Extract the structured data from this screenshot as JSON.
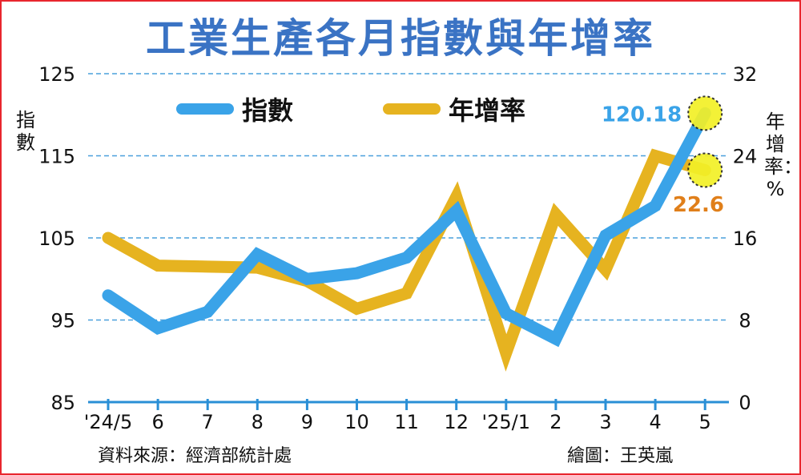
{
  "title": "工業生產各月指數與年增率",
  "footer": {
    "source": "資料來源：經濟部統計處",
    "credit": "繪圖：王英嵐"
  },
  "colors": {
    "index": "#3aa3e8",
    "growth": "#e6b320",
    "frame": "#e8262e",
    "title": "#3a73c4",
    "highlight": "#f3f027",
    "growth_label": "#e07f1a"
  },
  "chart_data": {
    "type": "line",
    "categories": [
      "'24/5",
      "6",
      "7",
      "8",
      "9",
      "10",
      "11",
      "12",
      "'25/1",
      "2",
      "3",
      "4",
      "5"
    ],
    "left_axis": {
      "label": "指數",
      "ticks": [
        85,
        95,
        105,
        115,
        125
      ],
      "ylim": [
        85,
        125
      ]
    },
    "right_axis": {
      "label": "年增率：%",
      "ticks": [
        0,
        8,
        16,
        24,
        32
      ],
      "ylim": [
        0,
        32
      ]
    },
    "grid": "horizontal-dashed",
    "legend_position": "top",
    "series": [
      {
        "name": "指數",
        "axis": "left",
        "values": [
          98.0,
          94.0,
          96.0,
          103.0,
          100.0,
          100.7,
          102.6,
          108.3,
          95.8,
          92.7,
          105.3,
          108.9,
          120.18
        ]
      },
      {
        "name": "年增率",
        "axis": "right",
        "values": [
          16.0,
          13.3,
          13.2,
          13.1,
          11.8,
          9.1,
          10.6,
          20.0,
          4.8,
          18.3,
          12.9,
          24.0,
          22.6
        ]
      }
    ],
    "annotations": [
      {
        "series": "指數",
        "index": 12,
        "text": "120.18"
      },
      {
        "series": "年增率",
        "index": 12,
        "text": "22.6"
      }
    ]
  }
}
